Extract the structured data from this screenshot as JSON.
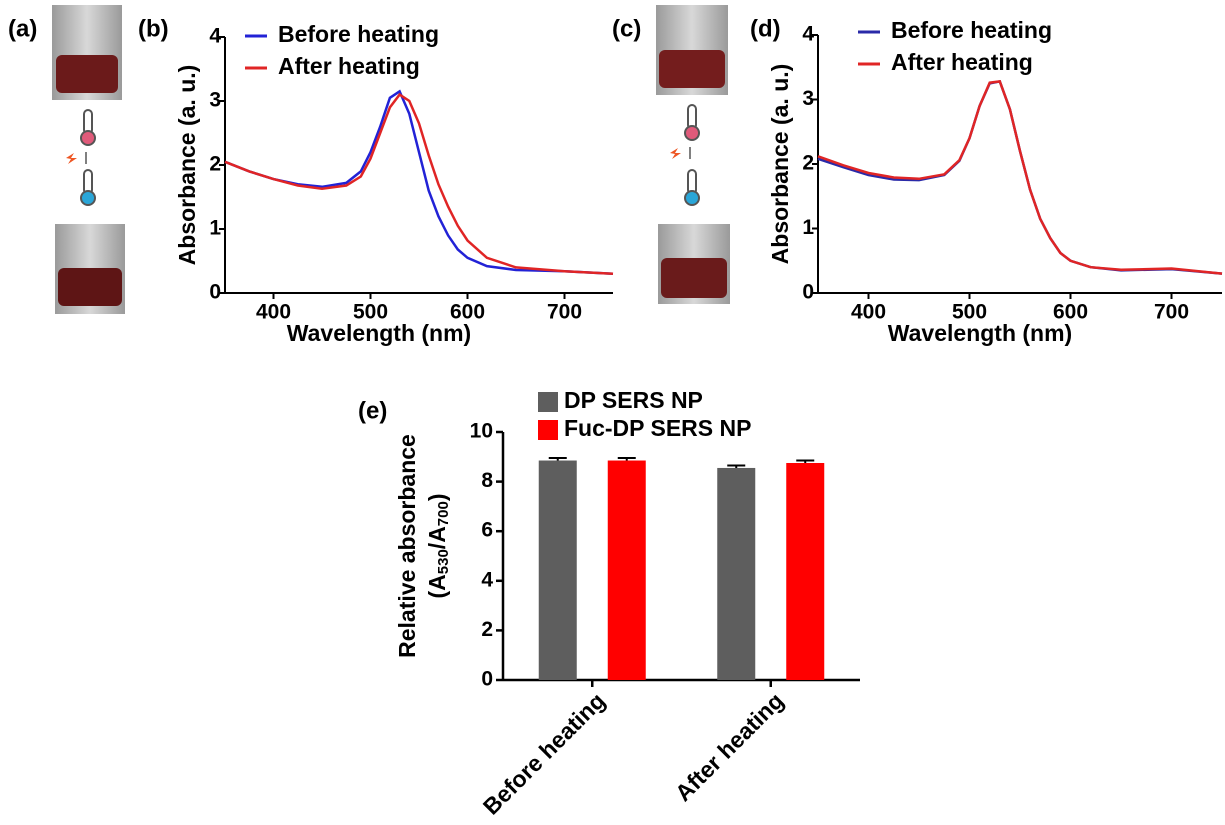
{
  "image_panels": [
    {
      "label": "(a)"
    },
    {
      "label": "(c)"
    }
  ],
  "chart_data": [
    {
      "type": "line",
      "panel": "(b)",
      "x_label": "Wavelength (nm)",
      "y_label": "Absorbance (a. u.)",
      "x": [
        350,
        375,
        400,
        425,
        450,
        475,
        490,
        500,
        510,
        520,
        530,
        540,
        550,
        560,
        570,
        580,
        590,
        600,
        620,
        650,
        700,
        750
      ],
      "series": [
        {
          "name": "Before heating",
          "color": "#2222d6",
          "values": [
            2.05,
            1.9,
            1.78,
            1.7,
            1.66,
            1.72,
            1.9,
            2.2,
            2.6,
            3.05,
            3.15,
            2.8,
            2.2,
            1.6,
            1.2,
            0.9,
            0.68,
            0.55,
            0.42,
            0.36,
            0.34,
            0.3
          ]
        },
        {
          "name": "After heating",
          "color": "#e02525",
          "values": [
            2.05,
            1.9,
            1.78,
            1.68,
            1.63,
            1.68,
            1.82,
            2.1,
            2.5,
            2.9,
            3.1,
            3.0,
            2.65,
            2.15,
            1.7,
            1.35,
            1.05,
            0.82,
            0.55,
            0.4,
            0.34,
            0.3
          ]
        }
      ],
      "xlim": [
        350,
        750
      ],
      "xticks": [
        400,
        500,
        600,
        700
      ],
      "ylim": [
        0,
        4
      ],
      "yticks": [
        0,
        1,
        2,
        3,
        4
      ]
    },
    {
      "type": "line",
      "panel": "(d)",
      "x_label": "Wavelength (nm)",
      "y_label": "Absorbance (a. u.)",
      "x": [
        350,
        375,
        400,
        425,
        450,
        475,
        490,
        500,
        510,
        520,
        530,
        540,
        550,
        560,
        570,
        580,
        590,
        600,
        620,
        650,
        700,
        750
      ],
      "series": [
        {
          "name": "Before heating",
          "color": "#2a2aa8",
          "values": [
            2.08,
            1.95,
            1.83,
            1.76,
            1.75,
            1.83,
            2.05,
            2.4,
            2.9,
            3.25,
            3.28,
            2.85,
            2.2,
            1.6,
            1.15,
            0.85,
            0.62,
            0.5,
            0.4,
            0.35,
            0.37,
            0.3
          ]
        },
        {
          "name": "After heating",
          "color": "#e02525",
          "values": [
            2.12,
            1.98,
            1.86,
            1.79,
            1.77,
            1.84,
            2.06,
            2.4,
            2.9,
            3.26,
            3.28,
            2.85,
            2.2,
            1.6,
            1.15,
            0.85,
            0.62,
            0.5,
            0.4,
            0.36,
            0.38,
            0.3
          ]
        }
      ],
      "xlim": [
        350,
        750
      ],
      "xticks": [
        400,
        500,
        600,
        700
      ],
      "ylim": [
        0,
        4
      ],
      "yticks": [
        0,
        1,
        2,
        3,
        4
      ]
    },
    {
      "type": "bar",
      "panel": "(e)",
      "y_label": "Relative absorbance",
      "y_label_2": [
        "(A",
        "530",
        "/A",
        "700",
        ")"
      ],
      "categories": [
        "Before heating",
        "After heating"
      ],
      "series": [
        {
          "name": "DP SERS NP",
          "color": "#5e5e5e",
          "values": [
            8.85,
            8.55
          ],
          "errors": [
            0.1,
            0.1
          ]
        },
        {
          "name": "Fuc-DP SERS NP",
          "color": "#ff0000",
          "values": [
            8.85,
            8.75
          ],
          "errors": [
            0.1,
            0.1
          ]
        }
      ],
      "ylim": [
        0,
        10
      ],
      "yticks": [
        0,
        2,
        4,
        6,
        8,
        10
      ]
    }
  ]
}
